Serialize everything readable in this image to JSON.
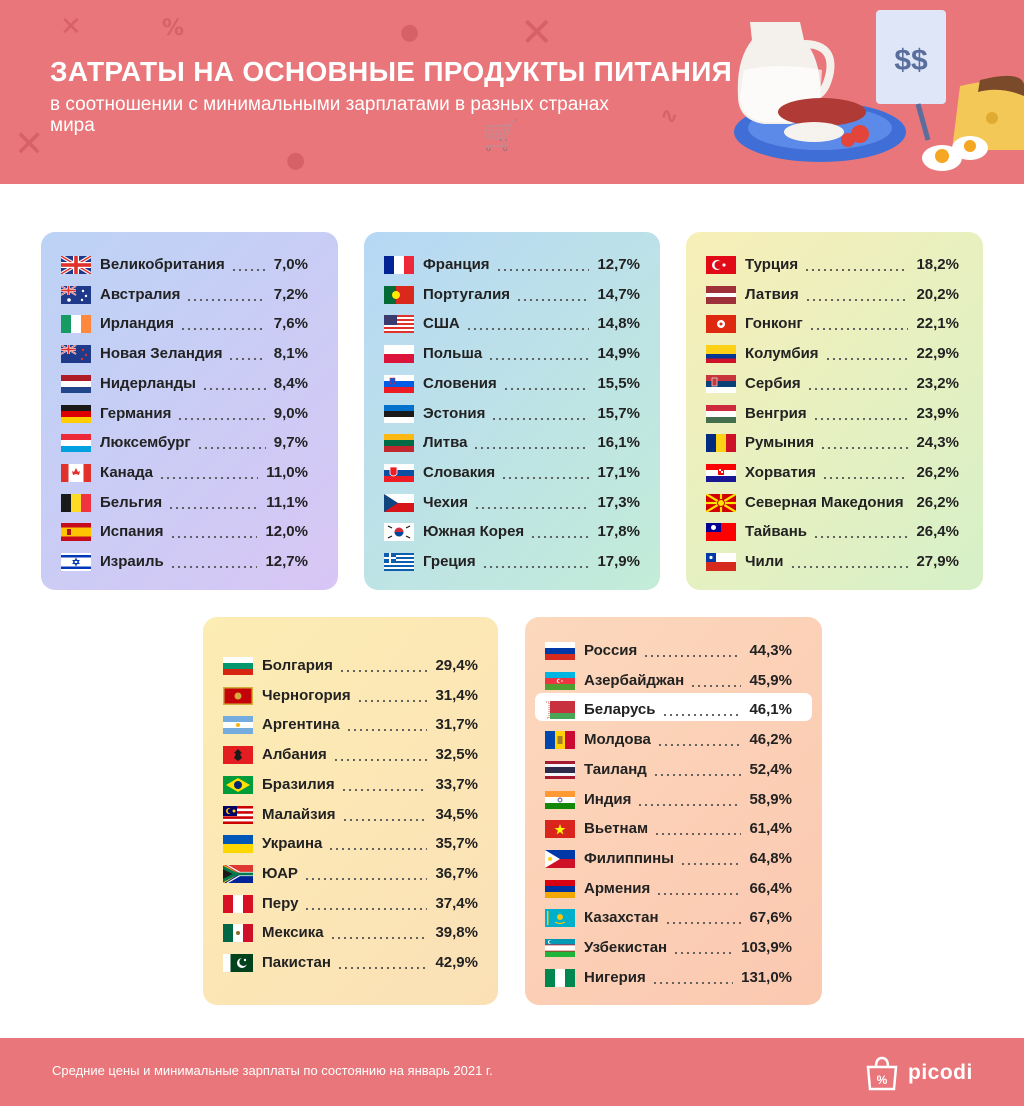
{
  "header": {
    "title": "ЗАТРАТЫ НА ОСНОВНЫЕ ПРОДУКТЫ ПИТАНИЯ",
    "subtitle": "в соотношении с минимальными зарплатами в разных странах мира",
    "sign_text": "$$"
  },
  "footer": {
    "note": "Средние цены и минимальные зарплаты по состоянию на январь 2021 г.",
    "logo": "picodi"
  },
  "colors": {
    "accent": "#e8767a",
    "highlight_country": "Беларусь"
  },
  "panels": [
    {
      "name": "panel-1",
      "gradient": [
        "#bcd3f5",
        "#d8c6f5"
      ],
      "rows": [
        {
          "country": "Великобритания",
          "value": "7,0%",
          "flag": "uk"
        },
        {
          "country": "Австралия",
          "value": "7,2%",
          "flag": "australia"
        },
        {
          "country": "Ирландия",
          "value": "7,6%",
          "flag": "ireland"
        },
        {
          "country": "Новая Зеландия",
          "value": "8,1%",
          "flag": "new-zealand"
        },
        {
          "country": "Нидерланды",
          "value": "8,4%",
          "flag": "netherlands"
        },
        {
          "country": "Германия",
          "value": "9,0%",
          "flag": "germany"
        },
        {
          "country": "Люксембург",
          "value": "9,7%",
          "flag": "luxembourg"
        },
        {
          "country": "Канада",
          "value": "11,0%",
          "flag": "canada"
        },
        {
          "country": "Бельгия",
          "value": "11,1%",
          "flag": "belgium"
        },
        {
          "country": "Испания",
          "value": "12,0%",
          "flag": "spain"
        },
        {
          "country": "Израиль",
          "value": "12,7%",
          "flag": "israel"
        }
      ]
    },
    {
      "name": "panel-2",
      "gradient": [
        "#b7d8f5",
        "#c3ecd8"
      ],
      "rows": [
        {
          "country": "Франция",
          "value": "12,7%",
          "flag": "france"
        },
        {
          "country": "Португалия",
          "value": "14,7%",
          "flag": "portugal"
        },
        {
          "country": "США",
          "value": "14,8%",
          "flag": "usa"
        },
        {
          "country": "Польша",
          "value": "14,9%",
          "flag": "poland"
        },
        {
          "country": "Словения",
          "value": "15,5%",
          "flag": "slovenia"
        },
        {
          "country": "Эстония",
          "value": "15,7%",
          "flag": "estonia"
        },
        {
          "country": "Литва",
          "value": "16,1%",
          "flag": "lithuania"
        },
        {
          "country": "Словакия",
          "value": "17,1%",
          "flag": "slovakia"
        },
        {
          "country": "Чехия",
          "value": "17,3%",
          "flag": "czechia"
        },
        {
          "country": "Южная Корея",
          "value": "17,8%",
          "flag": "south-korea"
        },
        {
          "country": "Греция",
          "value": "17,9%",
          "flag": "greece"
        }
      ]
    },
    {
      "name": "panel-3",
      "gradient": [
        "#f8efb8",
        "#d6f0c8"
      ],
      "rows": [
        {
          "country": "Турция",
          "value": "18,2%",
          "flag": "turkey"
        },
        {
          "country": "Латвия",
          "value": "20,2%",
          "flag": "latvia"
        },
        {
          "country": "Гонконг",
          "value": "22,1%",
          "flag": "hong-kong"
        },
        {
          "country": "Колумбия",
          "value": "22,9%",
          "flag": "colombia"
        },
        {
          "country": "Сербия",
          "value": "23,2%",
          "flag": "serbia"
        },
        {
          "country": "Венгрия",
          "value": "23,9%",
          "flag": "hungary"
        },
        {
          "country": "Румыния",
          "value": "24,3%",
          "flag": "romania"
        },
        {
          "country": "Хорватия",
          "value": "26,2%",
          "flag": "croatia"
        },
        {
          "country": "Северная Македония",
          "value": "26,2%",
          "flag": "north-macedonia"
        },
        {
          "country": "Тайвань",
          "value": "26,4%",
          "flag": "taiwan"
        },
        {
          "country": "Чили",
          "value": "27,9%",
          "flag": "chile"
        }
      ]
    },
    {
      "name": "panel-4",
      "gradient": [
        "#fcedb4",
        "#fbe0b6"
      ],
      "rows": [
        {
          "country": "Болгария",
          "value": "29,4%",
          "flag": "bulgaria"
        },
        {
          "country": "Черногория",
          "value": "31,4%",
          "flag": "montenegro"
        },
        {
          "country": "Аргентина",
          "value": "31,7%",
          "flag": "argentina"
        },
        {
          "country": "Албания",
          "value": "32,5%",
          "flag": "albania"
        },
        {
          "country": "Бразилия",
          "value": "33,7%",
          "flag": "brazil"
        },
        {
          "country": "Малайзия",
          "value": "34,5%",
          "flag": "malaysia"
        },
        {
          "country": "Украина",
          "value": "35,7%",
          "flag": "ukraine"
        },
        {
          "country": "ЮАР",
          "value": "36,7%",
          "flag": "south-africa"
        },
        {
          "country": "Перу",
          "value": "37,4%",
          "flag": "peru"
        },
        {
          "country": "Мексика",
          "value": "39,8%",
          "flag": "mexico"
        },
        {
          "country": "Пакистан",
          "value": "42,9%",
          "flag": "pakistan"
        }
      ]
    },
    {
      "name": "panel-5",
      "gradient": [
        "#fcd8bc",
        "#fbc8b0"
      ],
      "rows": [
        {
          "country": "Россия",
          "value": "44,3%",
          "flag": "russia"
        },
        {
          "country": "Азербайджан",
          "value": "45,9%",
          "flag": "azerbaijan"
        },
        {
          "country": "Беларусь",
          "value": "46,1%",
          "flag": "belarus"
        },
        {
          "country": "Молдова",
          "value": "46,2%",
          "flag": "moldova"
        },
        {
          "country": "Таиланд",
          "value": "52,4%",
          "flag": "thailand"
        },
        {
          "country": "Индия",
          "value": "58,9%",
          "flag": "india"
        },
        {
          "country": "Вьетнам",
          "value": "61,4%",
          "flag": "vietnam"
        },
        {
          "country": "Филиппины",
          "value": "64,8%",
          "flag": "philippines"
        },
        {
          "country": "Армения",
          "value": "66,4%",
          "flag": "armenia"
        },
        {
          "country": "Казахстан",
          "value": "67,6%",
          "flag": "kazakhstan"
        },
        {
          "country": "Узбекистан",
          "value": "103,9%",
          "flag": "uzbekistan"
        },
        {
          "country": "Нигерия",
          "value": "131,0%",
          "flag": "nigeria"
        }
      ]
    }
  ]
}
